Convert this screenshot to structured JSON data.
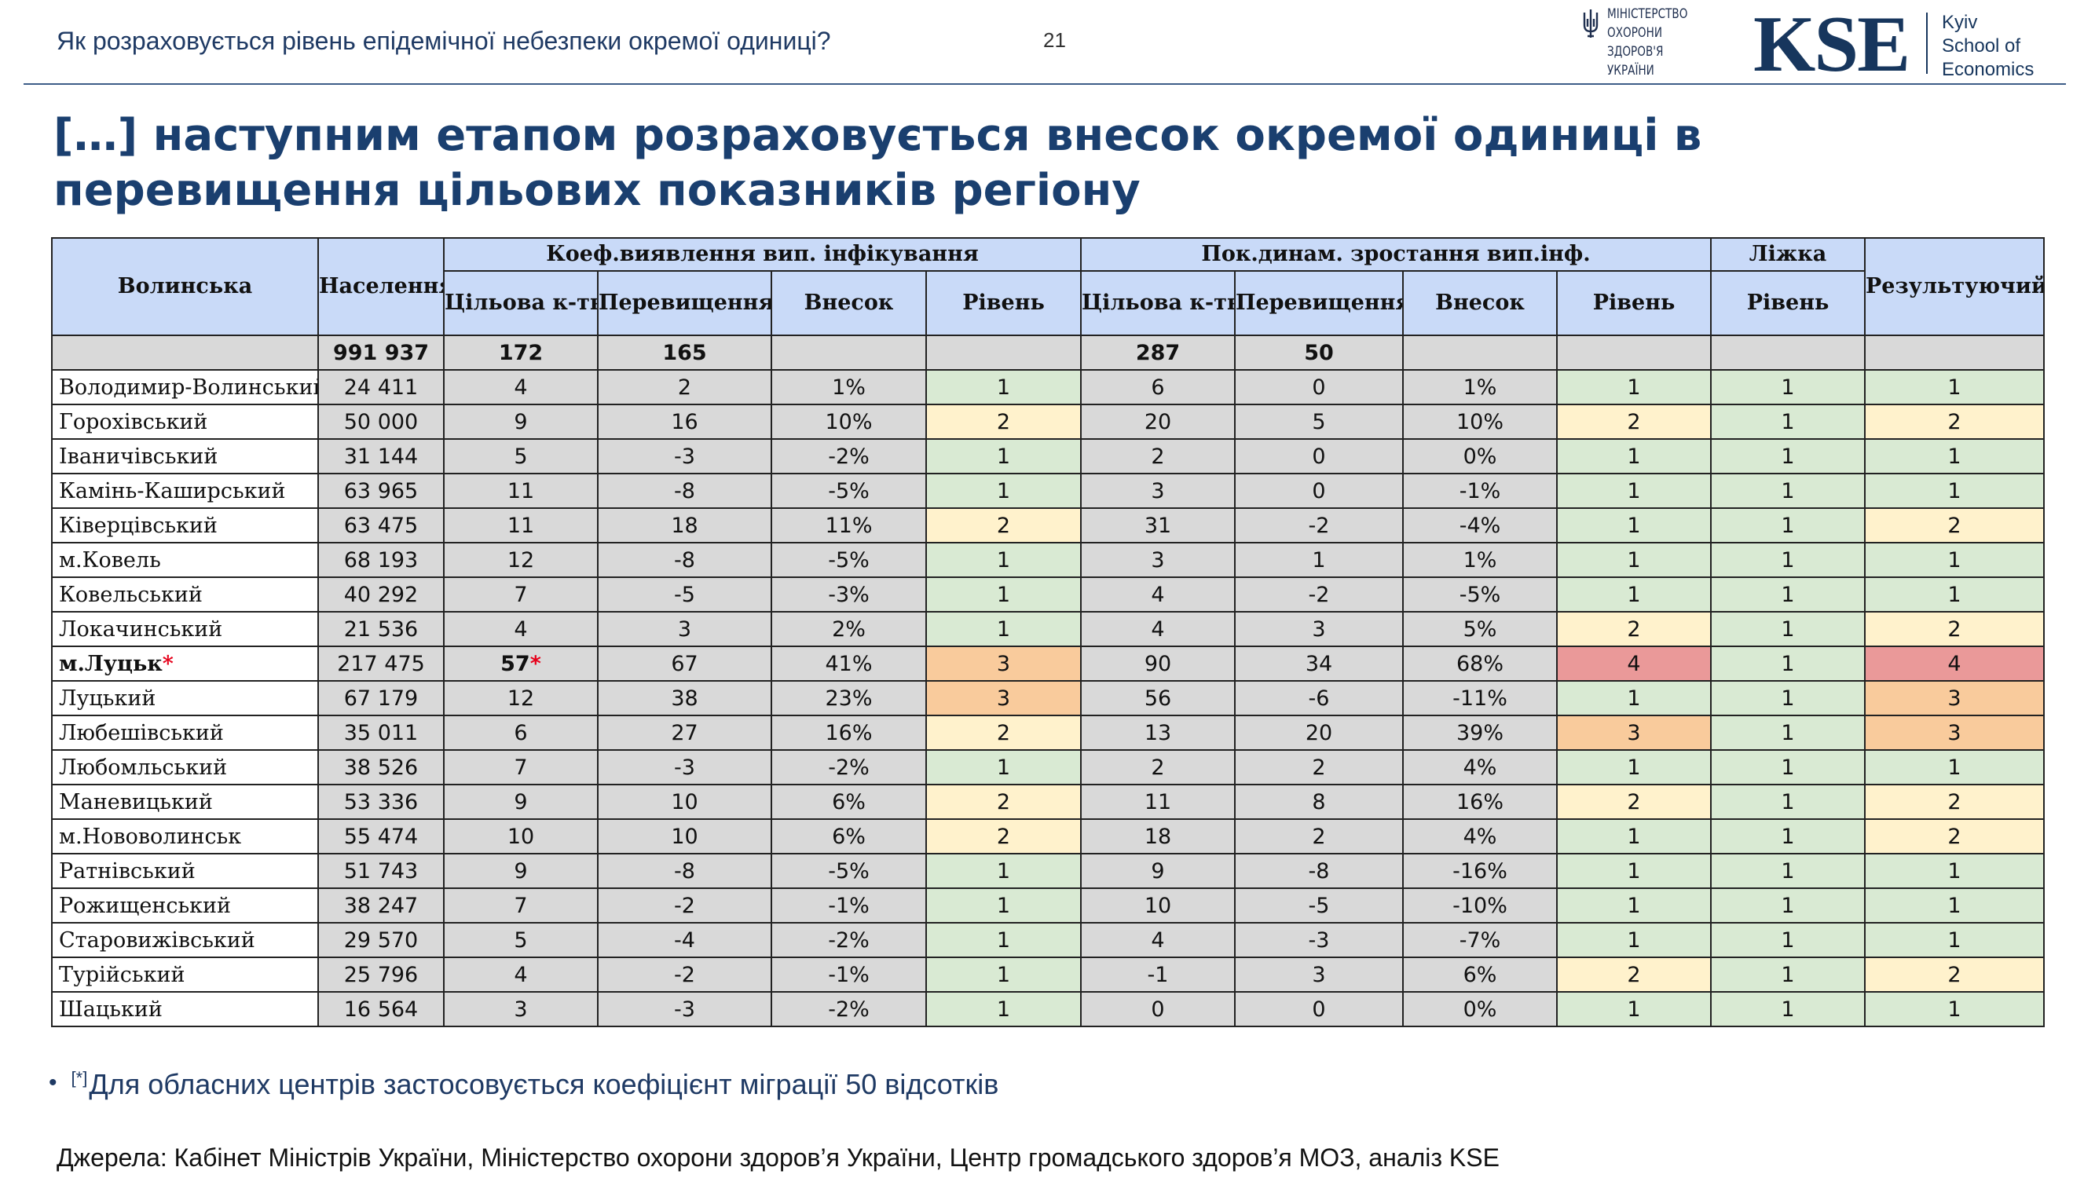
{
  "header": {
    "slide_title": "Як розраховується рівень епідемічної небезпеки окремої одиниці?",
    "page_number": "21",
    "moz_logo_lines": [
      "МІНІСТЕРСТВО",
      "ОХОРОНИ",
      "ЗДОРОВ'Я",
      "УКРАЇНИ"
    ],
    "kse_logo": "KSE",
    "kse_name_lines": [
      "Kyiv",
      "School of",
      "Economics"
    ]
  },
  "headline": "[…] наступним етапом розраховується внесок окремої одиниці в перевищення цільових показників регіону",
  "table": {
    "region_header": "Волинська",
    "population_header": "Населення",
    "group1_header": "Коеф.виявлення вип. інфікування",
    "group2_header": "Пок.динам. зростання вип.інф.",
    "group3_header": "Ліжка",
    "result_header": "Результуючий рівень",
    "sub_target": "Цільова к-ть випадків",
    "sub_excess": "Перевищення",
    "sub_share": "Внесок",
    "sub_level": "Рівень",
    "totals": {
      "population": "991 937",
      "g1_target": "172",
      "g1_excess": "165",
      "g2_target": "287",
      "g2_excess": "50"
    },
    "rows": [
      {
        "name": "Володимир-Волинський",
        "pop": "24 411",
        "t1": "4",
        "e1": "2",
        "s1": "1%",
        "l1": "1",
        "t2": "6",
        "e2": "0",
        "s2": "1%",
        "l2": "1",
        "beds": "1",
        "res": "1"
      },
      {
        "name": "Горохівський",
        "pop": "50 000",
        "t1": "9",
        "e1": "16",
        "s1": "10%",
        "l1": "2",
        "t2": "20",
        "e2": "5",
        "s2": "10%",
        "l2": "2",
        "beds": "1",
        "res": "2"
      },
      {
        "name": "Іваничівський",
        "pop": "31 144",
        "t1": "5",
        "e1": "-3",
        "s1": "-2%",
        "l1": "1",
        "t2": "2",
        "e2": "0",
        "s2": "0%",
        "l2": "1",
        "beds": "1",
        "res": "1"
      },
      {
        "name": "Камінь-Каширський",
        "pop": "63 965",
        "t1": "11",
        "e1": "-8",
        "s1": "-5%",
        "l1": "1",
        "t2": "3",
        "e2": "0",
        "s2": "-1%",
        "l2": "1",
        "beds": "1",
        "res": "1"
      },
      {
        "name": "Ківерцівський",
        "pop": "63 475",
        "t1": "11",
        "e1": "18",
        "s1": "11%",
        "l1": "2",
        "t2": "31",
        "e2": "-2",
        "s2": "-4%",
        "l2": "1",
        "beds": "1",
        "res": "2"
      },
      {
        "name": "м.Ковель",
        "pop": "68 193",
        "t1": "12",
        "e1": "-8",
        "s1": "-5%",
        "l1": "1",
        "t2": "3",
        "e2": "1",
        "s2": "1%",
        "l2": "1",
        "beds": "1",
        "res": "1"
      },
      {
        "name": "Ковельський",
        "pop": "40 292",
        "t1": "7",
        "e1": "-5",
        "s1": "-3%",
        "l1": "1",
        "t2": "4",
        "e2": "-2",
        "s2": "-5%",
        "l2": "1",
        "beds": "1",
        "res": "1"
      },
      {
        "name": "Локачинський",
        "pop": "21 536",
        "t1": "4",
        "e1": "3",
        "s1": "2%",
        "l1": "1",
        "t2": "4",
        "e2": "3",
        "s2": "5%",
        "l2": "2",
        "beds": "1",
        "res": "2"
      },
      {
        "name": "м.Луцьк",
        "pop": "217 475",
        "t1": "57",
        "e1": "67",
        "s1": "41%",
        "l1": "3",
        "t2": "90",
        "e2": "34",
        "s2": "68%",
        "l2": "4",
        "beds": "1",
        "res": "4",
        "starred": true
      },
      {
        "name": "Луцький",
        "pop": "67 179",
        "t1": "12",
        "e1": "38",
        "s1": "23%",
        "l1": "3",
        "t2": "56",
        "e2": "-6",
        "s2": "-11%",
        "l2": "1",
        "beds": "1",
        "res": "3"
      },
      {
        "name": "Любешівський",
        "pop": "35 011",
        "t1": "6",
        "e1": "27",
        "s1": "16%",
        "l1": "2",
        "t2": "13",
        "e2": "20",
        "s2": "39%",
        "l2": "3",
        "beds": "1",
        "res": "3"
      },
      {
        "name": "Любомльський",
        "pop": "38 526",
        "t1": "7",
        "e1": "-3",
        "s1": "-2%",
        "l1": "1",
        "t2": "2",
        "e2": "2",
        "s2": "4%",
        "l2": "1",
        "beds": "1",
        "res": "1"
      },
      {
        "name": "Маневицький",
        "pop": "53 336",
        "t1": "9",
        "e1": "10",
        "s1": "6%",
        "l1": "2",
        "t2": "11",
        "e2": "8",
        "s2": "16%",
        "l2": "2",
        "beds": "1",
        "res": "2"
      },
      {
        "name": "м.Нововолинськ",
        "pop": "55 474",
        "t1": "10",
        "e1": "10",
        "s1": "6%",
        "l1": "2",
        "t2": "18",
        "e2": "2",
        "s2": "4%",
        "l2": "1",
        "beds": "1",
        "res": "2"
      },
      {
        "name": "Ратнівський",
        "pop": "51 743",
        "t1": "9",
        "e1": "-8",
        "s1": "-5%",
        "l1": "1",
        "t2": "9",
        "e2": "-8",
        "s2": "-16%",
        "l2": "1",
        "beds": "1",
        "res": "1"
      },
      {
        "name": "Рожищенський",
        "pop": "38 247",
        "t1": "7",
        "e1": "-2",
        "s1": "-1%",
        "l1": "1",
        "t2": "10",
        "e2": "-5",
        "s2": "-10%",
        "l2": "1",
        "beds": "1",
        "res": "1"
      },
      {
        "name": "Старовижівський",
        "pop": "29 570",
        "t1": "5",
        "e1": "-4",
        "s1": "-2%",
        "l1": "1",
        "t2": "4",
        "e2": "-3",
        "s2": "-7%",
        "l2": "1",
        "beds": "1",
        "res": "1"
      },
      {
        "name": "Турійський",
        "pop": "25 796",
        "t1": "4",
        "e1": "-2",
        "s1": "-1%",
        "l1": "1",
        "t2": "-1",
        "e2": "3",
        "s2": "6%",
        "l2": "2",
        "beds": "1",
        "res": "2"
      },
      {
        "name": "Шацький",
        "pop": "16 564",
        "t1": "3",
        "e1": "-3",
        "s1": "-2%",
        "l1": "1",
        "t2": "0",
        "e2": "0",
        "s2": "0%",
        "l2": "1",
        "beds": "1",
        "res": "1"
      }
    ]
  },
  "footnote": {
    "bullet": "•",
    "mark": "[*]",
    "text": "Для обласних центрів застосовується коефіцієнт міграції 50 відсотків"
  },
  "sources": "Джерела: Кабінет Міністрів України, Міністерство охорони здоров’я України, Центр громадського здоров’я МОЗ, аналіз KSE",
  "colors": {
    "header_fill": "#c9daf8",
    "level_1": "#d9ead3",
    "level_2": "#fff2cc",
    "level_3": "#f9cb9c",
    "level_4": "#ea9999",
    "title_blue": "#1a3f6f"
  }
}
